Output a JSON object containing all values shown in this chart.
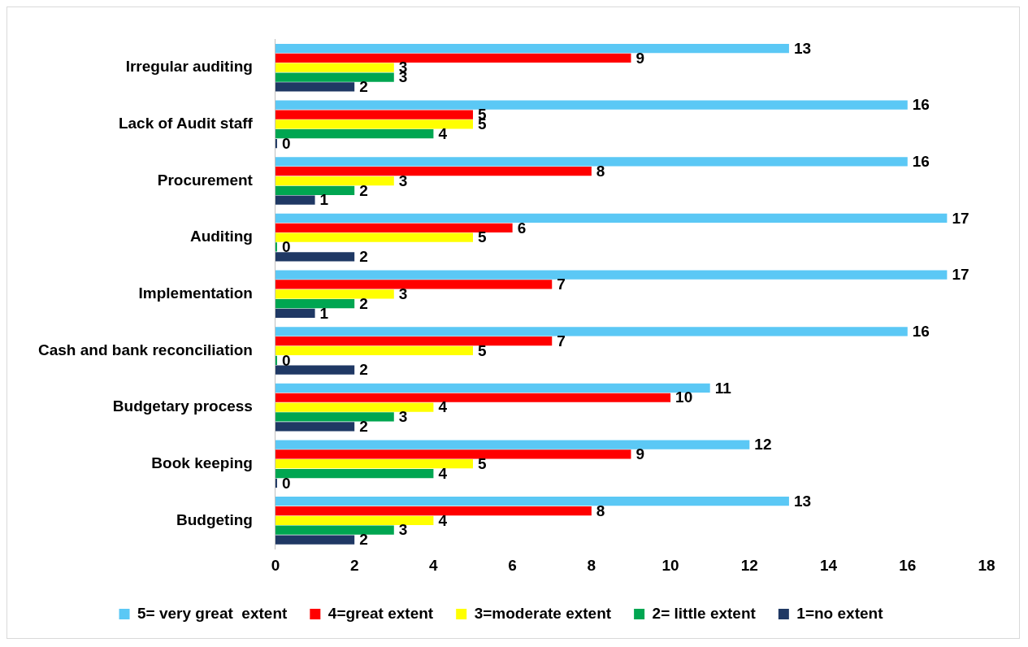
{
  "chart_data": {
    "type": "bar",
    "orientation": "horizontal",
    "categories": [
      "Irregular auditing",
      "Lack of Audit staff",
      "Procurement",
      "Auditing",
      "Implementation",
      "Cash and bank reconciliation",
      "Budgetary process",
      "Book keeping",
      "Budgeting"
    ],
    "series": [
      {
        "name": "5= very great  extent",
        "color": "#5bc8f5",
        "values": [
          13,
          16,
          16,
          17,
          17,
          16,
          11,
          12,
          13
        ]
      },
      {
        "name": "4=great extent",
        "color": "#ff0000",
        "values": [
          9,
          5,
          8,
          6,
          7,
          7,
          10,
          9,
          8
        ]
      },
      {
        "name": "3=moderate extent",
        "color": "#ffff00",
        "values": [
          3,
          5,
          3,
          5,
          3,
          5,
          4,
          5,
          4
        ]
      },
      {
        "name": "2= little extent",
        "color": "#00a651",
        "values": [
          3,
          4,
          2,
          0,
          2,
          0,
          3,
          4,
          3
        ]
      },
      {
        "name": "1=no extent",
        "color": "#1f3864",
        "values": [
          2,
          0,
          1,
          2,
          1,
          2,
          2,
          0,
          2
        ]
      }
    ],
    "xlim": [
      0,
      18
    ],
    "xticks": [
      0,
      2,
      4,
      6,
      8,
      10,
      12,
      14,
      16,
      18
    ],
    "grid": false,
    "legend": "bottom",
    "data_labels": true
  }
}
